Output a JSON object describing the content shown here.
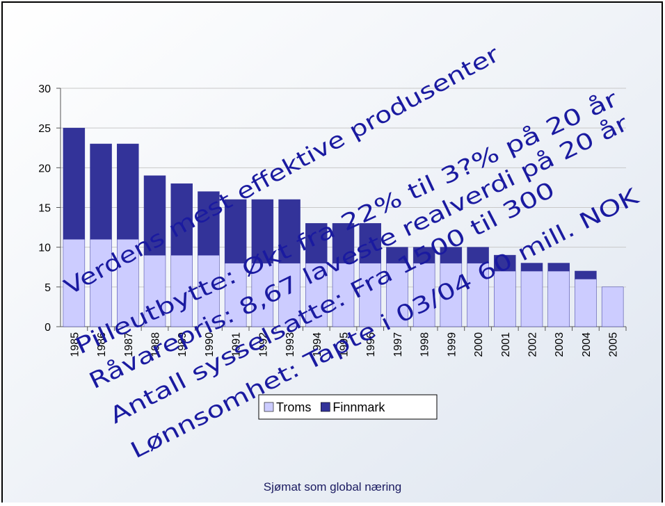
{
  "chart_data": {
    "type": "bar",
    "stacked": true,
    "categories": [
      "1985",
      "1986",
      "1987",
      "1988",
      "1989",
      "1990",
      "1991",
      "1992",
      "1993",
      "1994",
      "1995",
      "1996",
      "1997",
      "1998",
      "1999",
      "2000",
      "2001",
      "2002",
      "2003",
      "2004",
      "2005"
    ],
    "series": [
      {
        "name": "Troms",
        "color": "#ccccff",
        "values": [
          11,
          11,
          11,
          9,
          9,
          9,
          8,
          8,
          8,
          8,
          8,
          8,
          8,
          8,
          8,
          8,
          7,
          7,
          7,
          6,
          5
        ]
      },
      {
        "name": "Finnmark",
        "color": "#333399",
        "values": [
          14,
          12,
          12,
          10,
          9,
          8,
          8,
          8,
          8,
          5,
          5,
          5,
          2,
          2,
          2,
          2,
          2,
          1,
          1,
          1,
          0
        ]
      }
    ],
    "ylim": [
      0,
      30
    ],
    "yticks": [
      0,
      5,
      10,
      15,
      20,
      25,
      30
    ],
    "grid": true,
    "legend": "bottom",
    "annotations": [
      "Verdens mest effektive produsenter",
      "Pilleutbytte: Økt fra 22% til 3?% på 20 år",
      "Råvarepris: 8,67 laveste realverdi på 20 år",
      "Antall sysselsatte: Fra 1500 til 300",
      "Lønnsomhet: Tapte i 03/04 60 mill. NOK"
    ]
  },
  "footer": "Sjømat som global næring"
}
